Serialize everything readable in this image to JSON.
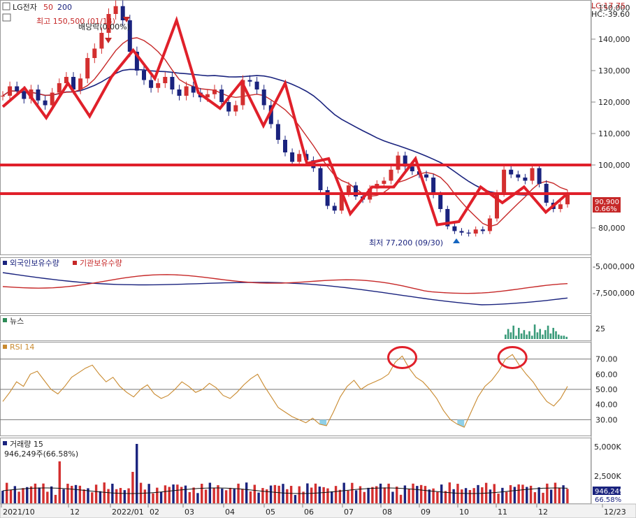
{
  "header": {
    "symbol": "LG전자",
    "ma_short": "50",
    "ma_long": "200",
    "lc_label": "LC:17.75",
    "hc_label": "HC:-39.60"
  },
  "annotations": {
    "high": "최고 150,500 (01/14)",
    "dividend": "배당락(0.00%)",
    "low": "최저 77,200 (09/30)"
  },
  "last_price": {
    "price": "90,900",
    "pct": "0.66%"
  },
  "chart_data": [
    {
      "type": "candlestick",
      "name": "price",
      "y_ticks": [
        "150,000",
        "140,000",
        "130,000",
        "120,000",
        "110,000",
        "100,000",
        "80,000"
      ],
      "ylim": [
        72000,
        152000
      ],
      "x_labels": [
        "2021/10",
        "12",
        "2022/01",
        "02",
        "03",
        "04",
        "05",
        "06",
        "07",
        "08",
        "09",
        "10",
        "11",
        "12",
        "12/23"
      ],
      "close": [
        122000,
        125000,
        123500,
        121000,
        124000,
        120500,
        119000,
        123000,
        126000,
        128000,
        124000,
        127500,
        134000,
        137000,
        142000,
        148000,
        150500,
        146000,
        136000,
        130000,
        127000,
        124500,
        126000,
        128000,
        124000,
        122000,
        125000,
        123000,
        121500,
        122500,
        124000,
        120000,
        117000,
        119000,
        127000,
        126500,
        124000,
        119000,
        113000,
        108000,
        104000,
        101000,
        103500,
        101500,
        99000,
        92000,
        87000,
        85500,
        91000,
        93500,
        90000,
        89000,
        92500,
        94000,
        95000,
        98500,
        103000,
        99500,
        98000,
        97000,
        96000,
        90500,
        86000,
        80500,
        79000,
        78500,
        78200,
        79500,
        79000,
        83000,
        91000,
        98500,
        97000,
        96000,
        95000,
        99000,
        94000,
        88000,
        86000,
        87500,
        90900
      ],
      "horizontal_lines": [
        100000,
        90900
      ],
      "trendline_points": [
        [
          118500,
          124500,
          115000,
          126000,
          115500,
          128000,
          136500,
          127500,
          146000,
          123000,
          118000,
          126500,
          112500,
          126000,
          100500,
          102000,
          84500,
          93000,
          93000,
          102000,
          81000,
          82000,
          93000,
          88000,
          93000,
          85000,
          90900
        ]
      ],
      "series": [
        {
          "name": "50"
        },
        {
          "name": "200"
        }
      ]
    },
    {
      "type": "line",
      "name": "holdings",
      "y_ticks": [
        "-5,000,000",
        "-7,500,000"
      ],
      "series": [
        {
          "name": "외국인보유수량",
          "color": "#1a237e"
        },
        {
          "name": "기관보유수량",
          "color": "#c62828"
        }
      ]
    },
    {
      "type": "bar",
      "name": "news",
      "title": "뉴스",
      "y_ticks": [
        "25"
      ],
      "values": [
        4,
        9,
        6,
        12,
        3,
        10,
        5,
        8,
        4,
        7,
        3,
        13,
        6,
        9,
        4,
        8,
        12,
        5,
        10,
        7,
        4,
        3,
        3,
        2
      ]
    },
    {
      "type": "line",
      "name": "rsi",
      "title": "RSI 14",
      "y_ticks": [
        "70.00",
        "60.00",
        "50.00",
        "40.00",
        "30.00"
      ],
      "ylim": [
        20,
        80
      ],
      "hlines": [
        70,
        50,
        30
      ],
      "values": [
        42,
        48,
        55,
        52,
        60,
        62,
        56,
        50,
        47,
        52,
        58,
        61,
        64,
        66,
        60,
        55,
        58,
        52,
        48,
        45,
        50,
        53,
        47,
        44,
        46,
        50,
        55,
        52,
        48,
        50,
        54,
        51,
        46,
        44,
        48,
        53,
        57,
        60,
        52,
        45,
        38,
        35,
        32,
        30,
        28,
        31,
        27,
        26,
        35,
        45,
        52,
        56,
        50,
        53,
        55,
        57,
        60,
        68,
        72,
        64,
        58,
        55,
        50,
        44,
        36,
        30,
        27,
        25,
        35,
        45,
        52,
        56,
        62,
        70,
        73,
        66,
        60,
        55,
        48,
        42,
        39,
        44,
        52
      ],
      "last": 51.5
    },
    {
      "type": "bar",
      "name": "volume",
      "title": "거래량 15",
      "subtitle": "946,249주(66.58%)",
      "y_ticks": [
        "5,000K",
        "2,500K"
      ],
      "last_value": "946,249",
      "last_pct": "66.58%"
    }
  ]
}
